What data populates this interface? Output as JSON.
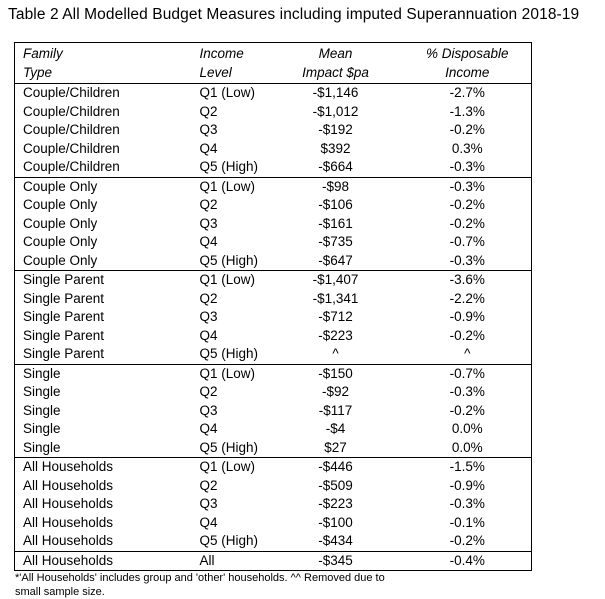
{
  "title": "Table 2 All Modelled Budget Measures including imputed Superannuation 2018-19",
  "table": {
    "columns": [
      {
        "lines": [
          "Family",
          "Type"
        ],
        "align": "left"
      },
      {
        "lines": [
          "Income",
          "Level"
        ],
        "align": "left"
      },
      {
        "lines": [
          "Mean",
          "Impact $pa"
        ],
        "align": "center"
      },
      {
        "lines": [
          "% Disposable",
          "Income"
        ],
        "align": "center"
      }
    ],
    "groups": [
      {
        "rows": [
          [
            "Couple/Children",
            "Q1 (Low)",
            "-$1,146",
            "-2.7%"
          ],
          [
            "Couple/Children",
            "Q2",
            "-$1,012",
            "-1.3%"
          ],
          [
            "Couple/Children",
            "Q3",
            "-$192",
            "-0.2%"
          ],
          [
            "Couple/Children",
            "Q4",
            "$392",
            "0.3%"
          ],
          [
            "Couple/Children",
            "Q5 (High)",
            "-$664",
            "-0.3%"
          ]
        ]
      },
      {
        "rows": [
          [
            "Couple Only",
            "Q1 (Low)",
            "-$98",
            "-0.3%"
          ],
          [
            "Couple Only",
            "Q2",
            "-$106",
            "-0.2%"
          ],
          [
            "Couple Only",
            "Q3",
            "-$161",
            "-0.2%"
          ],
          [
            "Couple Only",
            "Q4",
            "-$735",
            "-0.7%"
          ],
          [
            "Couple Only",
            "Q5 (High)",
            "-$647",
            "-0.3%"
          ]
        ]
      },
      {
        "rows": [
          [
            "Single Parent",
            "Q1 (Low)",
            "-$1,407",
            "-3.6%"
          ],
          [
            "Single Parent",
            "Q2",
            "-$1,341",
            "-2.2%"
          ],
          [
            "Single Parent",
            "Q3",
            "-$712",
            "-0.9%"
          ],
          [
            "Single Parent",
            "Q4",
            "-$223",
            "-0.2%"
          ],
          [
            "Single Parent",
            "Q5 (High)",
            "^",
            "^"
          ]
        ]
      },
      {
        "rows": [
          [
            "Single",
            "Q1 (Low)",
            "-$150",
            "-0.7%"
          ],
          [
            "Single",
            "Q2",
            "-$92",
            "-0.3%"
          ],
          [
            "Single",
            "Q3",
            "-$117",
            "-0.2%"
          ],
          [
            "Single",
            "Q4",
            "-$4",
            "0.0%"
          ],
          [
            "Single",
            "Q5 (High)",
            "$27",
            "0.0%"
          ]
        ]
      },
      {
        "rows": [
          [
            "All Households",
            "Q1 (Low)",
            "-$446",
            "-1.5%"
          ],
          [
            "All Households",
            "Q2",
            "-$509",
            "-0.9%"
          ],
          [
            "All Households",
            "Q3",
            "-$223",
            "-0.3%"
          ],
          [
            "All Households",
            "Q4",
            "-$100",
            "-0.1%"
          ],
          [
            "All Households",
            "Q5 (High)",
            "-$434",
            "-0.2%"
          ]
        ]
      }
    ],
    "total_row": [
      "All Households",
      "All",
      "-$345",
      "-0.4%"
    ]
  },
  "footnote_lines": [
    "*'All Households' includes group and 'other' households. ^^ Removed due to",
    "small sample size."
  ]
}
